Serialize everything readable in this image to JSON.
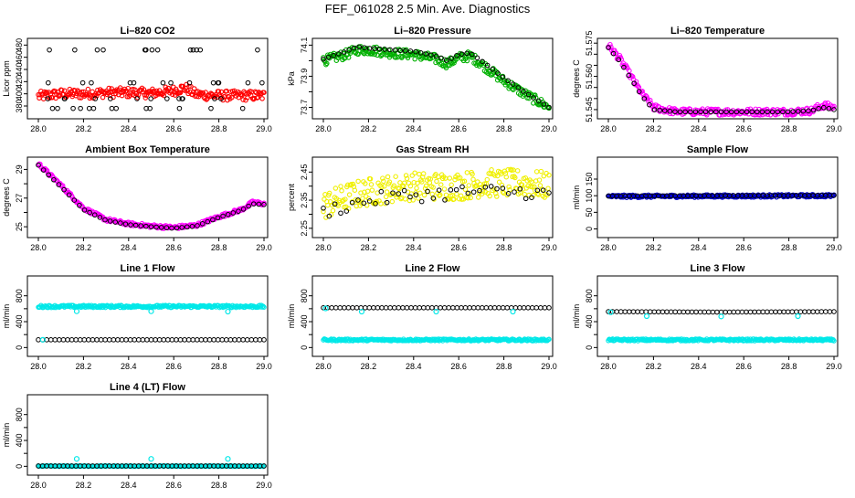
{
  "figure": {
    "title": "FEF_061028  2.5 Min. Ave. Diagnostics"
  },
  "colors": {
    "black": "#000000",
    "red": "#ff0000",
    "green": "#00b000",
    "magenta": "#ff00ff",
    "yellow": "#f0f000",
    "blue": "#0000cc",
    "cyan": "#00e8e8"
  },
  "chart_data": [
    {
      "type": "scatter",
      "title": "Li–820 CO2",
      "ylabel": "Licor ppm",
      "xlim": [
        28.0,
        29.0
      ],
      "ylim": [
        365,
        485
      ],
      "xticks": [
        28.0,
        28.2,
        28.4,
        28.6,
        28.8,
        29.0
      ],
      "xtick_labels": [
        "28.0",
        "28.2",
        "28.4",
        "28.6",
        "28.8",
        "29.0"
      ],
      "yticks": [
        380,
        400,
        420,
        440,
        460,
        480
      ],
      "ytick_labels": [
        "380",
        "400",
        "420",
        "440",
        "460",
        "480"
      ],
      "series": [
        {
          "color": "red",
          "style": "band",
          "x": [
            28.0,
            28.1,
            28.2,
            28.3,
            28.4,
            28.5,
            28.6,
            28.65,
            28.7,
            28.8,
            28.9,
            29.0
          ],
          "y": [
            396,
            400,
            400,
            402,
            402,
            401,
            405,
            410,
            399,
            397,
            397,
            397
          ],
          "spread": 8
        },
        {
          "color": "black",
          "style": "levels",
          "levels": [
            376,
            392,
            418,
            472
          ],
          "n": 38
        }
      ]
    },
    {
      "type": "scatter",
      "title": "Li–820 Pressure",
      "ylabel": "kPa",
      "xlim": [
        28.0,
        29.0
      ],
      "ylim": [
        73.65,
        74.12
      ],
      "xticks": [
        28.0,
        28.2,
        28.4,
        28.6,
        28.8,
        29.0
      ],
      "xtick_labels": [
        "28.0",
        "28.2",
        "28.4",
        "28.6",
        "28.8",
        "29.0"
      ],
      "yticks": [
        73.7,
        73.8,
        73.9,
        74.0,
        74.1
      ],
      "ytick_labels": [
        "73.7",
        "",
        "73.9",
        "",
        "74.1"
      ],
      "series": [
        {
          "color": "green",
          "style": "band",
          "x": [
            28.0,
            28.1,
            28.15,
            28.2,
            28.3,
            28.4,
            28.5,
            28.55,
            28.6,
            28.65,
            28.7,
            28.8,
            28.9,
            29.0
          ],
          "y": [
            74.0,
            74.04,
            74.07,
            74.07,
            74.05,
            74.04,
            74.01,
            73.98,
            74.02,
            74.03,
            73.98,
            73.87,
            73.78,
            73.7
          ],
          "spread": 0.03
        },
        {
          "color": "black",
          "style": "line-dots",
          "x": [
            28.0,
            28.1,
            28.15,
            28.2,
            28.3,
            28.4,
            28.5,
            28.55,
            28.6,
            28.65,
            28.7,
            28.8,
            28.9,
            29.0
          ],
          "y": [
            74.01,
            74.06,
            74.09,
            74.08,
            74.07,
            74.06,
            74.03,
            74.0,
            74.04,
            74.05,
            74.0,
            73.89,
            73.79,
            73.7
          ],
          "n": 45
        }
      ]
    },
    {
      "type": "scatter",
      "title": "Li–820 Temperature",
      "ylabel": "degrees C",
      "xlim": [
        28.0,
        29.0
      ],
      "ylim": [
        51.5425,
        51.5755
      ],
      "xticks": [
        28.0,
        28.2,
        28.4,
        28.6,
        28.8,
        29.0
      ],
      "xtick_labels": [
        "28.0",
        "28.2",
        "28.4",
        "28.6",
        "28.8",
        "29.0"
      ],
      "yticks": [
        51.545,
        51.55,
        51.555,
        51.56,
        51.565,
        51.57,
        51.575
      ],
      "ytick_labels": [
        "51.545",
        "",
        "",
        "51.560",
        "",
        "",
        "51.575"
      ],
      "series": [
        {
          "color": "magenta",
          "style": "band",
          "x": [
            28.0,
            28.05,
            28.1,
            28.15,
            28.2,
            28.3,
            28.5,
            28.8,
            28.9,
            28.95,
            29.0
          ],
          "y": [
            51.574,
            51.568,
            51.56,
            51.552,
            51.546,
            51.544,
            51.544,
            51.544,
            51.5445,
            51.547,
            51.546
          ],
          "spread": 0.0015
        },
        {
          "color": "black",
          "style": "line-dots",
          "x": [
            28.0,
            28.05,
            28.1,
            28.15,
            28.2,
            28.3,
            28.5,
            28.8,
            28.9,
            28.95,
            29.0
          ],
          "y": [
            51.573,
            51.567,
            51.559,
            51.551,
            51.545,
            51.544,
            51.544,
            51.544,
            51.5445,
            51.546,
            51.545
          ],
          "n": 45
        }
      ]
    },
    {
      "type": "scatter",
      "title": "Ambient Box Temperature",
      "ylabel": "degrees C",
      "xlim": [
        28.0,
        29.0
      ],
      "ylim": [
        24.5,
        29.6
      ],
      "xticks": [
        28.0,
        28.2,
        28.4,
        28.6,
        28.8,
        29.0
      ],
      "xtick_labels": [
        "28.0",
        "28.2",
        "28.4",
        "28.6",
        "28.8",
        "29.0"
      ],
      "yticks": [
        25,
        26,
        27,
        28,
        29
      ],
      "ytick_labels": [
        "25",
        "",
        "27",
        "",
        "29"
      ],
      "series": [
        {
          "color": "magenta",
          "style": "band",
          "x": [
            28.0,
            28.1,
            28.2,
            28.3,
            28.4,
            28.5,
            28.6,
            28.7,
            28.8,
            28.9,
            28.95,
            29.0
          ],
          "y": [
            29.4,
            27.9,
            26.3,
            25.5,
            25.2,
            25.05,
            24.95,
            25.1,
            25.7,
            26.2,
            26.7,
            26.6
          ],
          "spread": 0.12
        },
        {
          "color": "black",
          "style": "line-dots",
          "x": [
            28.0,
            28.1,
            28.2,
            28.3,
            28.4,
            28.5,
            28.6,
            28.7,
            28.8,
            28.9,
            28.95,
            29.0
          ],
          "y": [
            29.3,
            27.8,
            26.2,
            25.45,
            25.15,
            25.0,
            24.9,
            25.05,
            25.65,
            26.15,
            26.6,
            26.55
          ],
          "n": 45
        }
      ]
    },
    {
      "type": "scatter",
      "title": "Gas Stream RH",
      "ylabel": "percent",
      "xlim": [
        28.0,
        29.0
      ],
      "ylim": [
        2.23,
        2.49
      ],
      "xticks": [
        28.0,
        28.2,
        28.4,
        28.6,
        28.8,
        29.0
      ],
      "xtick_labels": [
        "28.0",
        "28.2",
        "28.4",
        "28.6",
        "28.8",
        "29.0"
      ],
      "yticks": [
        2.25,
        2.3,
        2.35,
        2.4,
        2.45
      ],
      "ytick_labels": [
        "2.25",
        "",
        "2.35",
        "",
        "2.45"
      ],
      "series": [
        {
          "color": "yellow",
          "style": "band",
          "x": [
            28.0,
            28.1,
            28.2,
            28.3,
            28.4,
            28.5,
            28.6,
            28.7,
            28.8,
            28.9,
            29.0
          ],
          "y": [
            2.33,
            2.36,
            2.38,
            2.39,
            2.4,
            2.4,
            2.4,
            2.41,
            2.41,
            2.41,
            2.4
          ],
          "spread": 0.05
        },
        {
          "color": "black",
          "style": "line-dots",
          "x": [
            28.0,
            28.1,
            28.2,
            28.3,
            28.4,
            28.5,
            28.6,
            28.7,
            28.8,
            28.9,
            29.0
          ],
          "y": [
            2.31,
            2.33,
            2.35,
            2.36,
            2.37,
            2.37,
            2.38,
            2.38,
            2.38,
            2.38,
            2.37
          ],
          "n": 40,
          "jitter": 0.025
        }
      ]
    },
    {
      "type": "scatter",
      "title": "Sample Flow",
      "ylabel": "ml/min",
      "xlim": [
        28.0,
        29.0
      ],
      "ylim": [
        -15,
        205
      ],
      "xticks": [
        28.0,
        28.2,
        28.4,
        28.6,
        28.8,
        29.0
      ],
      "xtick_labels": [
        "28.0",
        "28.2",
        "28.4",
        "28.6",
        "28.8",
        "29.0"
      ],
      "yticks": [
        0,
        50,
        100,
        150
      ],
      "ytick_labels": [
        "0",
        "50",
        "100",
        "150"
      ],
      "series": [
        {
          "color": "blue",
          "style": "band",
          "x": [
            28.0,
            29.0
          ],
          "y": [
            98,
            100
          ],
          "spread": 4
        },
        {
          "color": "black",
          "style": "line-dots",
          "x": [
            28.0,
            29.0
          ],
          "y": [
            99,
            101
          ],
          "n": 55
        }
      ]
    },
    {
      "type": "scatter",
      "title": "Line 1 Flow",
      "ylabel": "ml/min",
      "xlim": [
        28.0,
        29.0
      ],
      "ylim": [
        -80,
        1050
      ],
      "xticks": [
        28.0,
        28.2,
        28.4,
        28.6,
        28.8,
        29.0
      ],
      "xtick_labels": [
        "28.0",
        "28.2",
        "28.4",
        "28.6",
        "28.8",
        "29.0"
      ],
      "yticks": [
        0,
        200,
        400,
        600,
        800
      ],
      "ytick_labels": [
        "0",
        "",
        "400",
        "",
        "800"
      ],
      "series": [
        {
          "color": "cyan",
          "style": "band",
          "x": [
            28.0,
            29.0
          ],
          "y": [
            635,
            635
          ],
          "spread": 18
        },
        {
          "color": "cyan",
          "style": "points",
          "x": [
            28.17,
            28.5,
            28.84
          ],
          "y": [
            560,
            560,
            555
          ]
        },
        {
          "color": "black",
          "style": "line-dots",
          "x": [
            28.0,
            29.0
          ],
          "y": [
            120,
            120
          ],
          "n": 55
        },
        {
          "color": "cyan",
          "style": "points",
          "x": [
            28.02
          ],
          "y": [
            120
          ]
        }
      ]
    },
    {
      "type": "scatter",
      "title": "Line 2 Flow",
      "ylabel": "ml/min",
      "xlim": [
        28.0,
        29.0
      ],
      "ylim": [
        -80,
        1050
      ],
      "xticks": [
        28.0,
        28.2,
        28.4,
        28.6,
        28.8,
        29.0
      ],
      "xtick_labels": [
        "28.0",
        "28.2",
        "28.4",
        "28.6",
        "28.8",
        "29.0"
      ],
      "yticks": [
        0,
        200,
        400,
        600,
        800
      ],
      "ytick_labels": [
        "0",
        "",
        "400",
        "",
        "800"
      ],
      "series": [
        {
          "color": "cyan",
          "style": "band",
          "x": [
            28.0,
            29.0
          ],
          "y": [
            118,
            118
          ],
          "spread": 15
        },
        {
          "color": "black",
          "style": "line-dots",
          "x": [
            28.0,
            29.0
          ],
          "y": [
            615,
            615
          ],
          "n": 55
        },
        {
          "color": "cyan",
          "style": "points",
          "x": [
            28.01,
            28.17,
            28.5,
            28.84
          ],
          "y": [
            605,
            555,
            555,
            555
          ]
        }
      ]
    },
    {
      "type": "scatter",
      "title": "Line 3 Flow",
      "ylabel": "ml/min",
      "xlim": [
        28.0,
        29.0
      ],
      "ylim": [
        -80,
        1050
      ],
      "xticks": [
        28.0,
        28.2,
        28.4,
        28.6,
        28.8,
        29.0
      ],
      "xtick_labels": [
        "28.0",
        "28.2",
        "28.4",
        "28.6",
        "28.8",
        "29.0"
      ],
      "yticks": [
        0,
        200,
        400,
        600,
        800
      ],
      "ytick_labels": [
        "0",
        "",
        "400",
        "",
        "800"
      ],
      "series": [
        {
          "color": "cyan",
          "style": "band",
          "x": [
            28.0,
            29.0
          ],
          "y": [
            118,
            118
          ],
          "spread": 15
        },
        {
          "color": "black",
          "style": "line-dots",
          "x": [
            28.0,
            28.5,
            29.0
          ],
          "y": [
            555,
            548,
            555
          ],
          "n": 55
        },
        {
          "color": "cyan",
          "style": "points",
          "x": [
            28.01,
            28.17,
            28.5,
            28.84
          ],
          "y": [
            545,
            485,
            480,
            485
          ]
        }
      ]
    },
    {
      "type": "scatter",
      "title": "Line 4 (LT) Flow",
      "ylabel": "ml/min",
      "xlim": [
        28.0,
        29.0
      ],
      "ylim": [
        -80,
        1050
      ],
      "xticks": [
        28.0,
        28.2,
        28.4,
        28.6,
        28.8,
        29.0
      ],
      "xtick_labels": [
        "28.0",
        "28.2",
        "28.4",
        "28.6",
        "28.8",
        "29.0"
      ],
      "yticks": [
        0,
        200,
        400,
        600,
        800
      ],
      "ytick_labels": [
        "0",
        "",
        "400",
        "",
        "800"
      ],
      "series": [
        {
          "color": "cyan",
          "style": "band",
          "x": [
            28.0,
            29.0
          ],
          "y": [
            3,
            3
          ],
          "spread": 6
        },
        {
          "color": "black",
          "style": "line-dots",
          "x": [
            28.0,
            29.0
          ],
          "y": [
            5,
            5
          ],
          "n": 55
        },
        {
          "color": "cyan",
          "style": "points",
          "x": [
            28.17,
            28.5,
            28.84
          ],
          "y": [
            115,
            115,
            115
          ]
        }
      ]
    }
  ]
}
